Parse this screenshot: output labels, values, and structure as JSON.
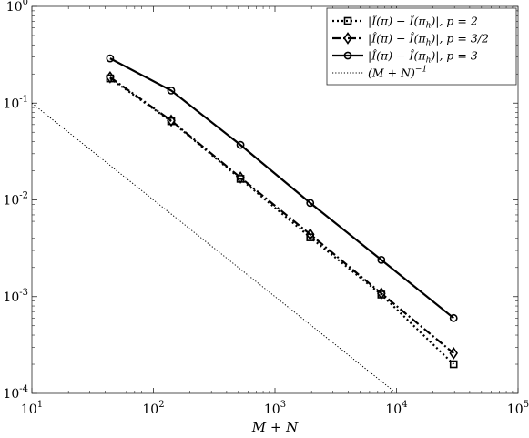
{
  "chart_data": {
    "type": "line",
    "xscale": "log",
    "yscale": "log",
    "xlim": [
      10,
      100000
    ],
    "ylim": [
      0.0001,
      1
    ],
    "xlabel": "M + N",
    "ylabel": "",
    "grid": false,
    "legend_position": "top-right",
    "x_ticks": [
      {
        "value": 10,
        "base": "10",
        "exp": "1"
      },
      {
        "value": 100,
        "base": "10",
        "exp": "2"
      },
      {
        "value": 1000,
        "base": "10",
        "exp": "3"
      },
      {
        "value": 10000,
        "base": "10",
        "exp": "4"
      },
      {
        "value": 100000,
        "base": "10",
        "exp": "5"
      }
    ],
    "y_ticks": [
      {
        "value": 0.0001,
        "base": "10",
        "exp": "-4"
      },
      {
        "value": 0.001,
        "base": "10",
        "exp": "-3"
      },
      {
        "value": 0.01,
        "base": "10",
        "exp": "-2"
      },
      {
        "value": 0.1,
        "base": "10",
        "exp": "-1"
      },
      {
        "value": 1,
        "base": "10",
        "exp": "0"
      }
    ],
    "series": [
      {
        "name": "|Î(π) − Î(πh)|,  p = 2",
        "style": "dotted",
        "marker": "square",
        "color": "#000000",
        "x": [
          44,
          140,
          520,
          1950,
          7500,
          29500
        ],
        "y": [
          0.18,
          0.065,
          0.0165,
          0.0041,
          0.00105,
          0.0002
        ]
      },
      {
        "name": "|Î(π) − Î(πh)|,  p = 3/2",
        "style": "dashdot",
        "marker": "diamond",
        "color": "#000000",
        "x": [
          44,
          140,
          520,
          1950,
          7500,
          29500
        ],
        "y": [
          0.185,
          0.066,
          0.017,
          0.0044,
          0.00108,
          0.00026
        ]
      },
      {
        "name": "|Î(π) − Î(πh)|,  p = 3",
        "style": "solid",
        "marker": "circle",
        "color": "#000000",
        "x": [
          44,
          140,
          520,
          1950,
          7500,
          29500
        ],
        "y": [
          0.29,
          0.135,
          0.037,
          0.0093,
          0.0024,
          0.0006
        ]
      },
      {
        "name": "(M + N)^-1",
        "style": "dotted-thin",
        "marker": "none",
        "color": "#000000",
        "x": [
          10,
          10000
        ],
        "y": [
          0.1,
          0.0001
        ]
      }
    ],
    "legend": [
      {
        "abs_core": "|Î(π) − Î(π",
        "sub": "h",
        "abs_tail": ")|,  p = 2"
      },
      {
        "abs_core": "|Î(π) − Î(π",
        "sub": "h",
        "abs_tail": ")|,  p = 3/2"
      },
      {
        "abs_core": "|Î(π) − Î(π",
        "sub": "h",
        "abs_tail": ")|,  p = 3"
      },
      {
        "abs_core": "(M + N)",
        "sup": "−1"
      }
    ]
  }
}
